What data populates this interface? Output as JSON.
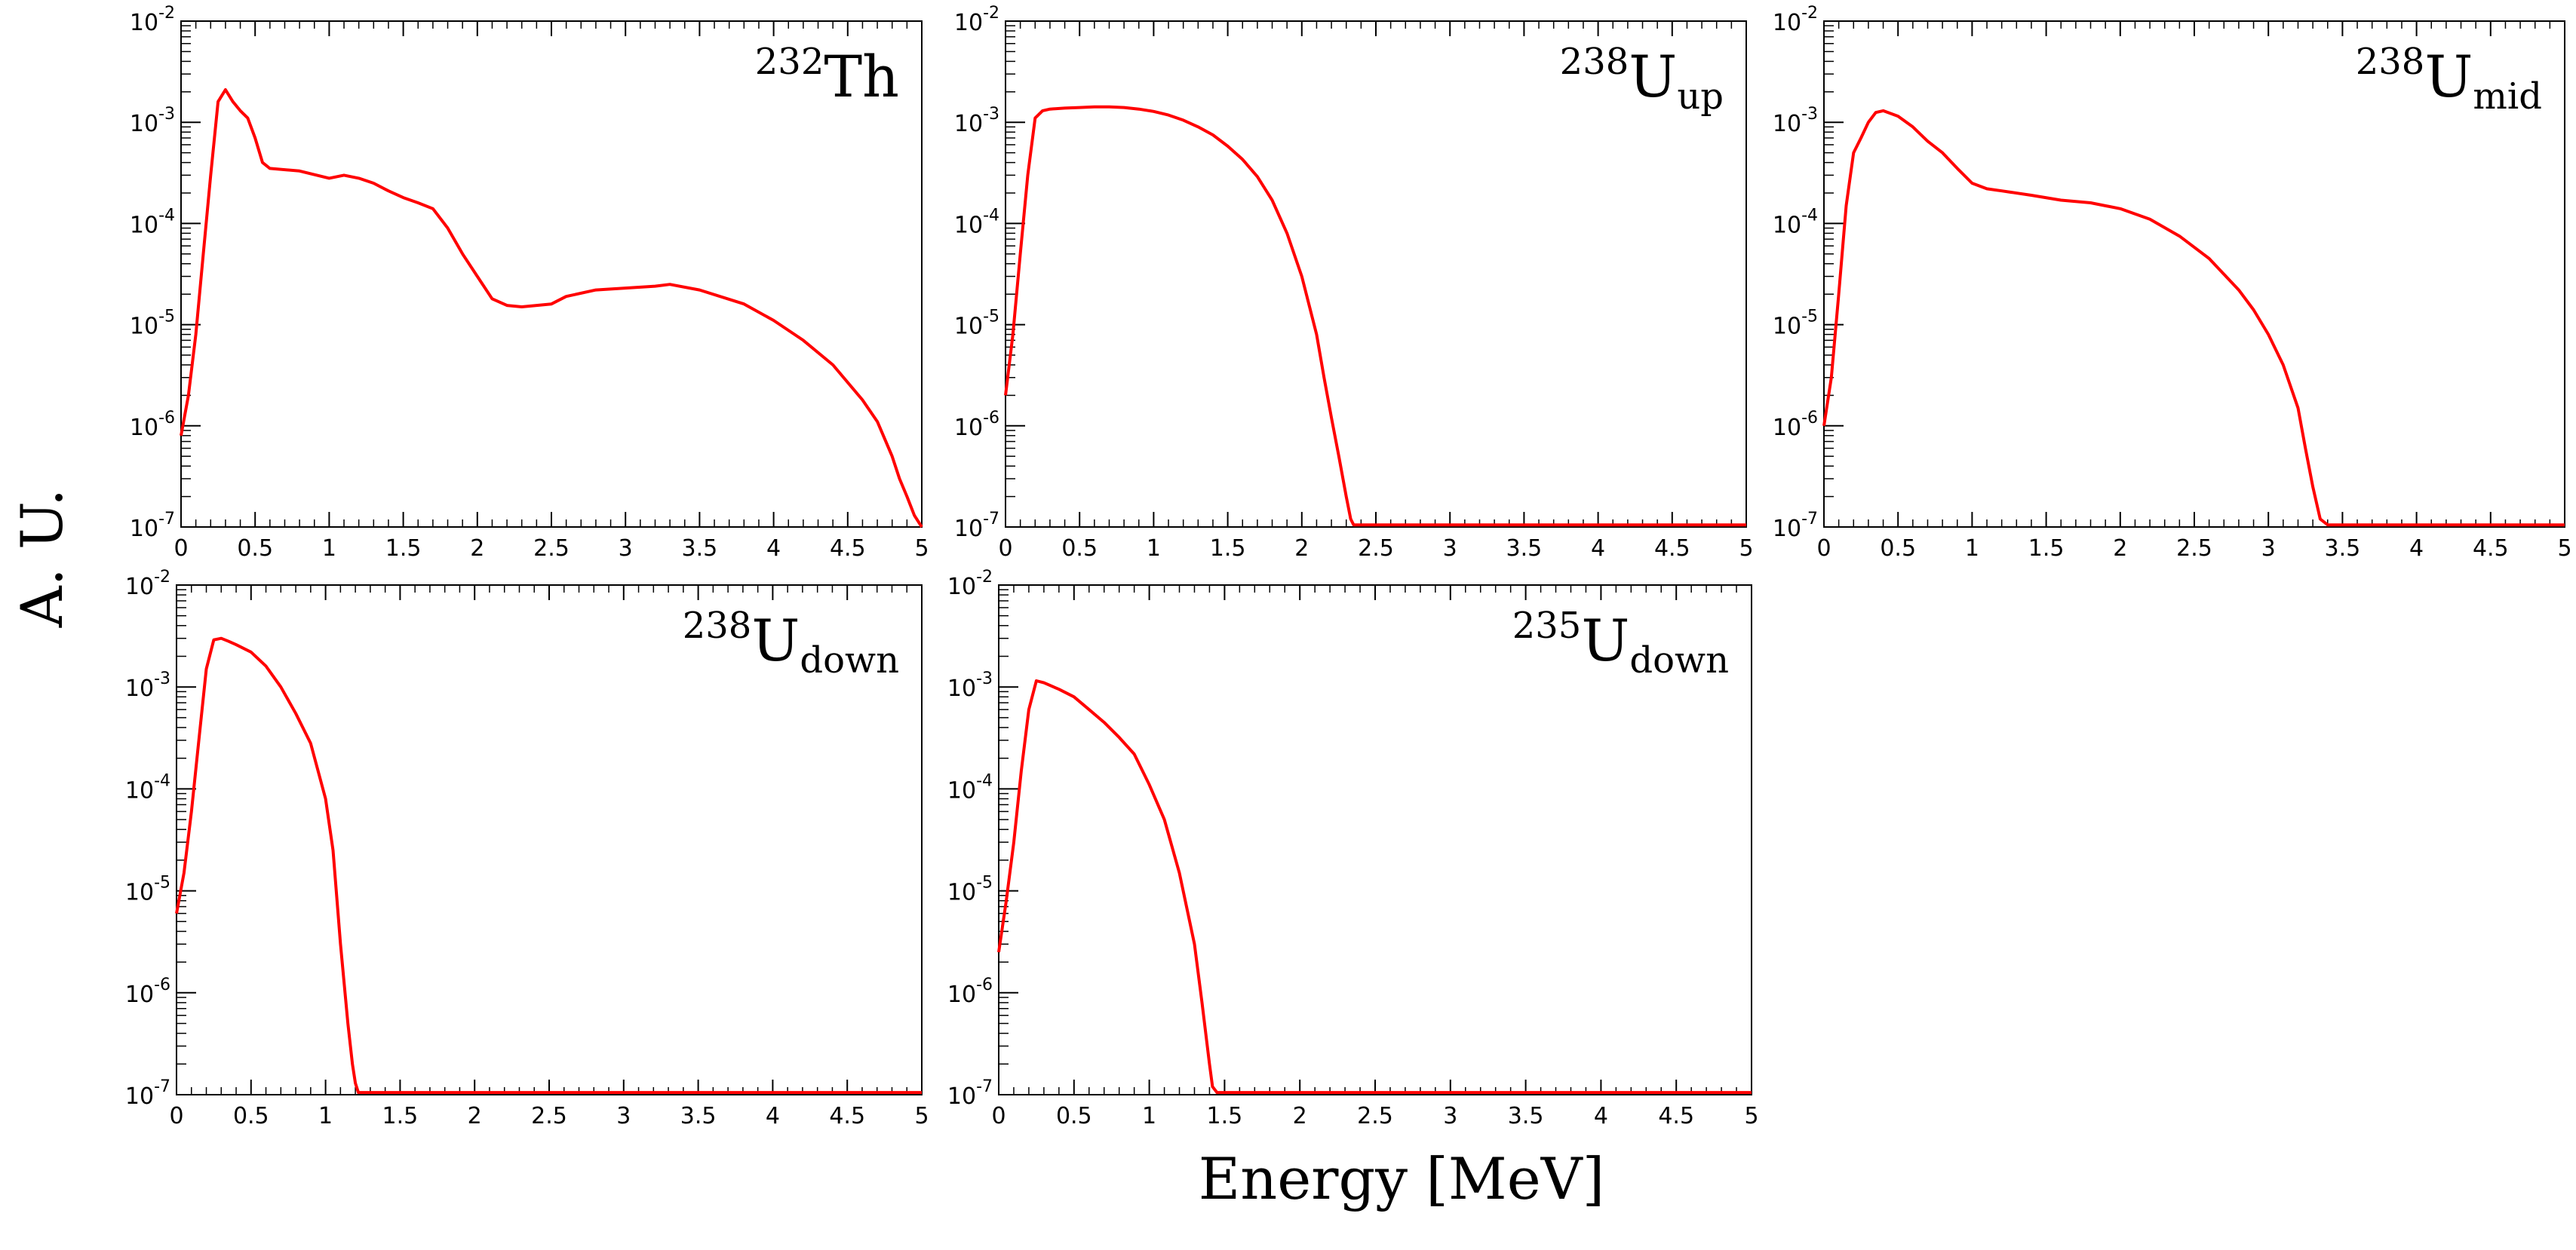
{
  "figure": {
    "ylabel": "A. U.",
    "xlabel": "Energy [MeV]"
  },
  "chart_data": [
    {
      "type": "line",
      "label": {
        "sup": "232",
        "main": "Th",
        "sub": ""
      },
      "xlim": [
        0,
        5
      ],
      "ylim": [
        1e-07,
        0.01
      ],
      "yscale": "log",
      "xticks": [
        "0",
        "0.5",
        "1",
        "1.5",
        "2",
        "2.5",
        "3",
        "3.5",
        "4",
        "4.5",
        "5"
      ],
      "yticks": [
        {
          "base": "10",
          "exp": "-7"
        },
        {
          "base": "10",
          "exp": "-6"
        },
        {
          "base": "10",
          "exp": "-5"
        },
        {
          "base": "10",
          "exp": "-4"
        },
        {
          "base": "10",
          "exp": "-3"
        },
        {
          "base": "10",
          "exp": "-2"
        }
      ],
      "color": "#ff0000",
      "x": [
        0.0,
        0.05,
        0.1,
        0.15,
        0.2,
        0.25,
        0.3,
        0.35,
        0.4,
        0.45,
        0.5,
        0.55,
        0.6,
        0.8,
        1.0,
        1.1,
        1.2,
        1.3,
        1.4,
        1.5,
        1.6,
        1.7,
        1.8,
        1.9,
        2.0,
        2.1,
        2.2,
        2.3,
        2.5,
        2.6,
        2.8,
        3.0,
        3.2,
        3.3,
        3.5,
        3.8,
        4.0,
        4.2,
        4.4,
        4.6,
        4.7,
        4.8,
        4.85,
        4.9,
        4.95,
        5.0
      ],
      "y": [
        8e-07,
        2e-06,
        8e-06,
        5e-05,
        0.0003,
        0.0016,
        0.0021,
        0.0016,
        0.0013,
        0.0011,
        0.0007,
        0.0004,
        0.00035,
        0.00033,
        0.00028,
        0.0003,
        0.00028,
        0.00025,
        0.00021,
        0.00018,
        0.00016,
        0.00014,
        9e-05,
        5e-05,
        3e-05,
        1.8e-05,
        1.55e-05,
        1.5e-05,
        1.6e-05,
        1.9e-05,
        2.2e-05,
        2.3e-05,
        2.4e-05,
        2.5e-05,
        2.2e-05,
        1.6e-05,
        1.1e-05,
        7e-06,
        4e-06,
        1.8e-06,
        1.1e-06,
        5e-07,
        3e-07,
        2e-07,
        1.3e-07,
        1e-07
      ]
    },
    {
      "type": "line",
      "label": {
        "sup": "238",
        "main": "U",
        "sub": "up"
      },
      "xlim": [
        0,
        5
      ],
      "ylim": [
        1e-07,
        0.01
      ],
      "yscale": "log",
      "xticks": [
        "0",
        "0.5",
        "1",
        "1.5",
        "2",
        "2.5",
        "3",
        "3.5",
        "4",
        "4.5",
        "5"
      ],
      "yticks": [
        {
          "base": "10",
          "exp": "-7"
        },
        {
          "base": "10",
          "exp": "-6"
        },
        {
          "base": "10",
          "exp": "-5"
        },
        {
          "base": "10",
          "exp": "-4"
        },
        {
          "base": "10",
          "exp": "-3"
        },
        {
          "base": "10",
          "exp": "-2"
        }
      ],
      "color": "#ff0000",
      "x": [
        0.0,
        0.05,
        0.1,
        0.15,
        0.2,
        0.25,
        0.3,
        0.4,
        0.5,
        0.6,
        0.7,
        0.8,
        0.9,
        1.0,
        1.1,
        1.2,
        1.3,
        1.4,
        1.5,
        1.6,
        1.7,
        1.8,
        1.9,
        2.0,
        2.1,
        2.15,
        2.2,
        2.25,
        2.3,
        2.33,
        2.35,
        2.4,
        3.0,
        4.0,
        5.0
      ],
      "y": [
        2e-06,
        8e-06,
        5e-05,
        0.0003,
        0.0011,
        0.0013,
        0.00135,
        0.00138,
        0.0014,
        0.00142,
        0.00142,
        0.0014,
        0.00135,
        0.00128,
        0.00118,
        0.00105,
        0.0009,
        0.00075,
        0.00058,
        0.00043,
        0.00029,
        0.00017,
        8e-05,
        3e-05,
        8e-06,
        3e-06,
        1.2e-06,
        5e-07,
        2e-07,
        1.2e-07,
        1.05e-07,
        1.05e-07,
        1.05e-07,
        1.05e-07,
        1.05e-07
      ]
    },
    {
      "type": "line",
      "label": {
        "sup": "238",
        "main": "U",
        "sub": "mid"
      },
      "xlim": [
        0,
        5
      ],
      "ylim": [
        1e-07,
        0.01
      ],
      "yscale": "log",
      "xticks": [
        "0",
        "0.5",
        "1",
        "1.5",
        "2",
        "2.5",
        "3",
        "3.5",
        "4",
        "4.5",
        "5"
      ],
      "yticks": [
        {
          "base": "10",
          "exp": "-7"
        },
        {
          "base": "10",
          "exp": "-6"
        },
        {
          "base": "10",
          "exp": "-5"
        },
        {
          "base": "10",
          "exp": "-4"
        },
        {
          "base": "10",
          "exp": "-3"
        },
        {
          "base": "10",
          "exp": "-2"
        }
      ],
      "color": "#ff0000",
      "x": [
        0.0,
        0.05,
        0.1,
        0.15,
        0.2,
        0.25,
        0.3,
        0.35,
        0.4,
        0.5,
        0.6,
        0.7,
        0.8,
        0.9,
        1.0,
        1.1,
        1.2,
        1.4,
        1.6,
        1.8,
        2.0,
        2.2,
        2.4,
        2.6,
        2.8,
        2.9,
        3.0,
        3.1,
        3.2,
        3.25,
        3.3,
        3.35,
        3.4,
        4.0,
        5.0
      ],
      "y": [
        1e-06,
        3e-06,
        2e-05,
        0.00015,
        0.0005,
        0.0007,
        0.001,
        0.00125,
        0.0013,
        0.00115,
        0.0009,
        0.00065,
        0.0005,
        0.00035,
        0.00025,
        0.00022,
        0.00021,
        0.00019,
        0.00017,
        0.00016,
        0.00014,
        0.00011,
        7.5e-05,
        4.5e-05,
        2.2e-05,
        1.4e-05,
        8e-06,
        4e-06,
        1.5e-06,
        6e-07,
        2.5e-07,
        1.2e-07,
        1.05e-07,
        1.05e-07,
        1.05e-07
      ]
    },
    {
      "type": "line",
      "label": {
        "sup": "238",
        "main": "U",
        "sub": "down"
      },
      "xlim": [
        0,
        5
      ],
      "ylim": [
        1e-07,
        0.01
      ],
      "yscale": "log",
      "xticks": [
        "0",
        "0.5",
        "1",
        "1.5",
        "2",
        "2.5",
        "3",
        "3.5",
        "4",
        "4.5",
        "5"
      ],
      "yticks": [
        {
          "base": "10",
          "exp": "-7"
        },
        {
          "base": "10",
          "exp": "-6"
        },
        {
          "base": "10",
          "exp": "-5"
        },
        {
          "base": "10",
          "exp": "-4"
        },
        {
          "base": "10",
          "exp": "-3"
        },
        {
          "base": "10",
          "exp": "-2"
        }
      ],
      "color": "#ff0000",
      "x": [
        0.0,
        0.05,
        0.1,
        0.15,
        0.2,
        0.25,
        0.3,
        0.35,
        0.4,
        0.5,
        0.6,
        0.7,
        0.8,
        0.9,
        1.0,
        1.05,
        1.1,
        1.15,
        1.18,
        1.2,
        1.22,
        1.25,
        2.0,
        3.0,
        4.0,
        5.0
      ],
      "y": [
        6e-06,
        1.5e-05,
        6e-05,
        0.0003,
        0.0015,
        0.0029,
        0.003,
        0.0028,
        0.0026,
        0.0022,
        0.0016,
        0.001,
        0.00055,
        0.00028,
        8e-05,
        2.5e-05,
        3e-06,
        5e-07,
        2e-07,
        1.3e-07,
        1.05e-07,
        1.05e-07,
        1.05e-07,
        1.05e-07,
        1.05e-07,
        1.05e-07
      ]
    },
    {
      "type": "line",
      "label": {
        "sup": "235",
        "main": "U",
        "sub": "down"
      },
      "xlim": [
        0,
        5
      ],
      "ylim": [
        1e-07,
        0.01
      ],
      "yscale": "log",
      "xticks": [
        "0",
        "0.5",
        "1",
        "1.5",
        "2",
        "2.5",
        "3",
        "3.5",
        "4",
        "4.5",
        "5"
      ],
      "yticks": [
        {
          "base": "10",
          "exp": "-7"
        },
        {
          "base": "10",
          "exp": "-6"
        },
        {
          "base": "10",
          "exp": "-5"
        },
        {
          "base": "10",
          "exp": "-4"
        },
        {
          "base": "10",
          "exp": "-3"
        },
        {
          "base": "10",
          "exp": "-2"
        }
      ],
      "color": "#ff0000",
      "x": [
        0.0,
        0.05,
        0.1,
        0.15,
        0.2,
        0.25,
        0.3,
        0.4,
        0.5,
        0.6,
        0.7,
        0.8,
        0.9,
        1.0,
        1.1,
        1.2,
        1.3,
        1.35,
        1.4,
        1.42,
        1.45,
        2.0,
        3.0,
        4.0,
        5.0
      ],
      "y": [
        2.5e-06,
        8e-06,
        3e-05,
        0.00015,
        0.0006,
        0.00115,
        0.0011,
        0.00095,
        0.0008,
        0.0006,
        0.00045,
        0.00032,
        0.00022,
        0.00011,
        5e-05,
        1.5e-05,
        3e-06,
        8e-07,
        2e-07,
        1.2e-07,
        1.05e-07,
        1.05e-07,
        1.05e-07,
        1.05e-07,
        1.05e-07
      ]
    }
  ]
}
